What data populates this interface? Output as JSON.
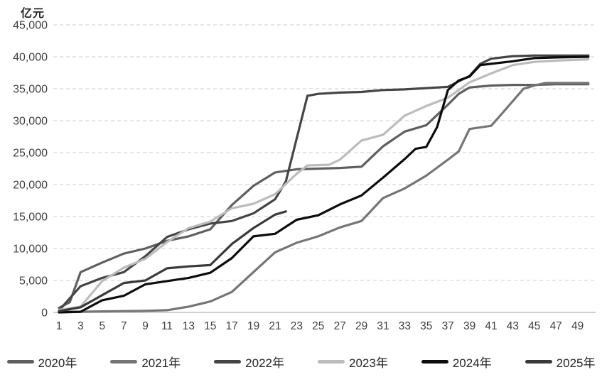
{
  "chart_data": {
    "type": "line",
    "title": "",
    "unit_label": "亿元",
    "xlabel": "",
    "ylabel": "亿元",
    "x_axis": {
      "ticks": [
        1,
        3,
        5,
        7,
        9,
        11,
        13,
        15,
        17,
        19,
        21,
        23,
        25,
        27,
        29,
        31,
        33,
        35,
        37,
        39,
        41,
        43,
        45,
        47,
        49
      ],
      "range": [
        1,
        50
      ]
    },
    "y_axis": {
      "min": 0,
      "max": 45000,
      "step": 5000,
      "tick_labels": [
        "0",
        "5,000",
        "10,000",
        "15,000",
        "20,000",
        "25,000",
        "30,000",
        "35,000",
        "40,000",
        "45,000"
      ]
    },
    "grid": "horizontal-dashed",
    "legend_position": "bottom",
    "axis_text_color": "#404040",
    "gridline_color": "#d6d6d6",
    "baseline_color": "#c0c0c0",
    "series": [
      {
        "name": "2020年",
        "color": "#5f5f5f",
        "points": [
          [
            1,
            700
          ],
          [
            2,
            1600
          ],
          [
            3,
            6300
          ],
          [
            5,
            7800
          ],
          [
            7,
            9200
          ],
          [
            9,
            10000
          ],
          [
            11,
            11200
          ],
          [
            13,
            11900
          ],
          [
            15,
            13000
          ],
          [
            17,
            16800
          ],
          [
            19,
            19800
          ],
          [
            21,
            21900
          ],
          [
            23,
            22400
          ],
          [
            25,
            22500
          ],
          [
            27,
            22600
          ],
          [
            29,
            22800
          ],
          [
            31,
            26000
          ],
          [
            33,
            28300
          ],
          [
            35,
            29300
          ],
          [
            37,
            32500
          ],
          [
            38,
            34200
          ],
          [
            39,
            35200
          ],
          [
            41,
            35500
          ],
          [
            43,
            35600
          ],
          [
            45,
            35600
          ],
          [
            47,
            35700
          ],
          [
            50,
            35700
          ]
        ]
      },
      {
        "name": "2021年",
        "color": "#757575",
        "points": [
          [
            1,
            100
          ],
          [
            3,
            100
          ],
          [
            5,
            150
          ],
          [
            7,
            200
          ],
          [
            9,
            250
          ],
          [
            11,
            350
          ],
          [
            13,
            900
          ],
          [
            15,
            1700
          ],
          [
            17,
            3200
          ],
          [
            19,
            6300
          ],
          [
            21,
            9400
          ],
          [
            23,
            10900
          ],
          [
            25,
            11900
          ],
          [
            27,
            13300
          ],
          [
            29,
            14300
          ],
          [
            31,
            17900
          ],
          [
            33,
            19400
          ],
          [
            35,
            21400
          ],
          [
            37,
            23900
          ],
          [
            38,
            25200
          ],
          [
            39,
            28700
          ],
          [
            41,
            29200
          ],
          [
            42,
            31100
          ],
          [
            44,
            35000
          ],
          [
            45,
            35500
          ],
          [
            46,
            35900
          ],
          [
            50,
            35900
          ]
        ]
      },
      {
        "name": "2022年",
        "color": "#454545",
        "points": [
          [
            1,
            300
          ],
          [
            3,
            4100
          ],
          [
            5,
            5400
          ],
          [
            7,
            6300
          ],
          [
            9,
            8800
          ],
          [
            11,
            11800
          ],
          [
            13,
            13000
          ],
          [
            15,
            13900
          ],
          [
            17,
            14300
          ],
          [
            19,
            15500
          ],
          [
            21,
            17700
          ],
          [
            22,
            20500
          ],
          [
            24,
            33900
          ],
          [
            25,
            34200
          ],
          [
            27,
            34400
          ],
          [
            29,
            34500
          ],
          [
            31,
            34800
          ],
          [
            33,
            34900
          ],
          [
            35,
            35100
          ],
          [
            37,
            35300
          ],
          [
            39,
            37000
          ],
          [
            40,
            38900
          ],
          [
            41,
            39700
          ],
          [
            43,
            40100
          ],
          [
            45,
            40200
          ],
          [
            47,
            40200
          ],
          [
            50,
            40200
          ]
        ]
      },
      {
        "name": "2023年",
        "color": "#bcbcbc",
        "points": [
          [
            1,
            400
          ],
          [
            3,
            900
          ],
          [
            5,
            4900
          ],
          [
            7,
            7000
          ],
          [
            9,
            8400
          ],
          [
            11,
            11000
          ],
          [
            13,
            13200
          ],
          [
            15,
            14200
          ],
          [
            17,
            16300
          ],
          [
            19,
            17000
          ],
          [
            21,
            18500
          ],
          [
            23,
            21700
          ],
          [
            24,
            23000
          ],
          [
            26,
            23100
          ],
          [
            27,
            23900
          ],
          [
            29,
            26900
          ],
          [
            31,
            27800
          ],
          [
            33,
            30800
          ],
          [
            35,
            32300
          ],
          [
            37,
            33600
          ],
          [
            39,
            36000
          ],
          [
            41,
            37400
          ],
          [
            43,
            38700
          ],
          [
            45,
            39200
          ],
          [
            47,
            39400
          ],
          [
            50,
            39600
          ]
        ]
      },
      {
        "name": "2024年",
        "color": "#0c0c0c",
        "points": [
          [
            1,
            0
          ],
          [
            3,
            100
          ],
          [
            5,
            1900
          ],
          [
            7,
            2600
          ],
          [
            9,
            4400
          ],
          [
            11,
            4900
          ],
          [
            13,
            5400
          ],
          [
            15,
            6200
          ],
          [
            17,
            8500
          ],
          [
            19,
            11900
          ],
          [
            21,
            12300
          ],
          [
            23,
            14500
          ],
          [
            25,
            15200
          ],
          [
            27,
            16900
          ],
          [
            29,
            18300
          ],
          [
            31,
            21100
          ],
          [
            33,
            24000
          ],
          [
            34,
            25600
          ],
          [
            35,
            25900
          ],
          [
            36,
            29000
          ],
          [
            37,
            34800
          ],
          [
            38,
            36300
          ],
          [
            39,
            36900
          ],
          [
            40,
            38700
          ],
          [
            41,
            38900
          ],
          [
            43,
            39300
          ],
          [
            45,
            39800
          ],
          [
            47,
            39900
          ],
          [
            50,
            40000
          ]
        ]
      },
      {
        "name": "2025年",
        "color": "#3a3a3a",
        "points": [
          [
            1,
            200
          ],
          [
            3,
            800
          ],
          [
            5,
            2700
          ],
          [
            7,
            4600
          ],
          [
            9,
            5000
          ],
          [
            11,
            6900
          ],
          [
            13,
            7200
          ],
          [
            15,
            7400
          ],
          [
            17,
            10700
          ],
          [
            19,
            13200
          ],
          [
            21,
            15300
          ],
          [
            22,
            15800
          ]
        ]
      }
    ]
  }
}
